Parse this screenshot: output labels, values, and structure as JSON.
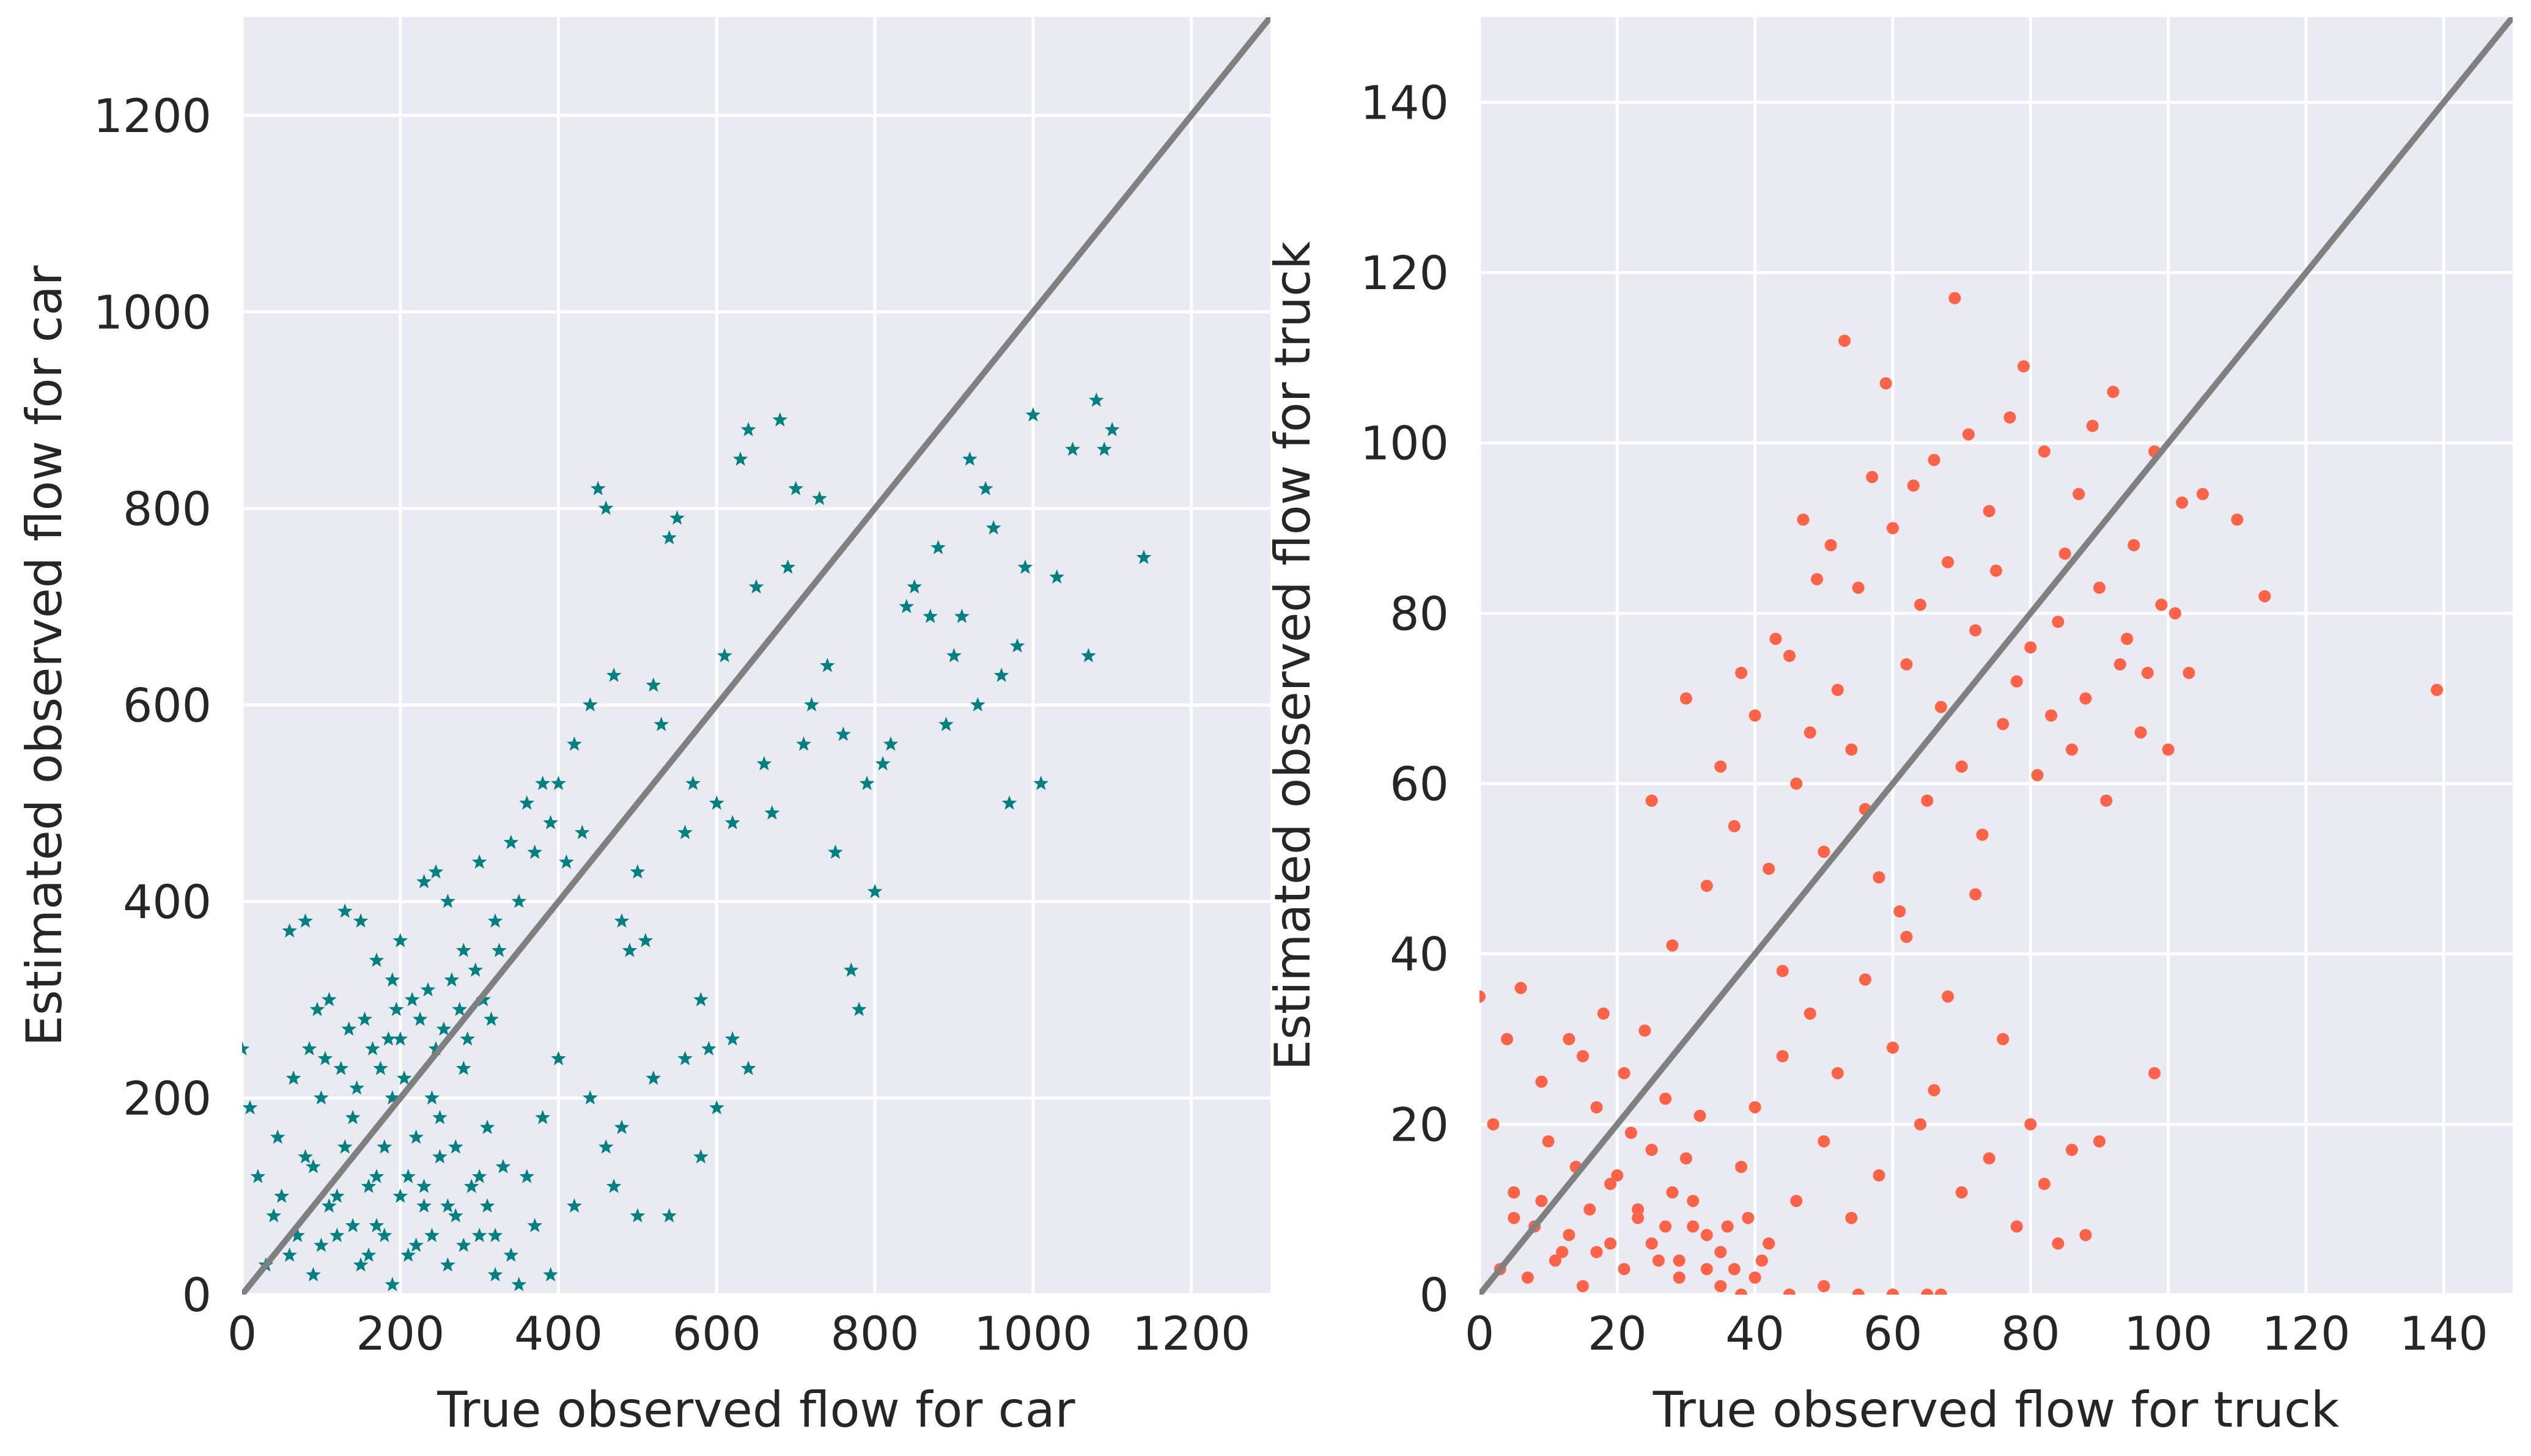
{
  "chart_data": [
    {
      "type": "scatter",
      "marker": "star",
      "color": "#008080",
      "background": "#EAEAF2",
      "grid": true,
      "xlabel": "True observed flow for car",
      "ylabel": "Estimated observed flow for car",
      "xlim": [
        0,
        1300
      ],
      "ylim": [
        0,
        1300
      ],
      "xticks": [
        "0",
        "200",
        "400",
        "600",
        "800",
        "1000",
        "1200"
      ],
      "yticks": [
        "0",
        "200",
        "400",
        "600",
        "800",
        "1000",
        "1200"
      ],
      "reference_line": {
        "from": [
          0,
          0
        ],
        "to": [
          1300,
          1300
        ],
        "color": "#808080"
      },
      "points": [
        [
          0,
          250
        ],
        [
          10,
          190
        ],
        [
          20,
          120
        ],
        [
          40,
          80
        ],
        [
          60,
          40
        ],
        [
          80,
          140
        ],
        [
          90,
          20
        ],
        [
          100,
          200
        ],
        [
          110,
          90
        ],
        [
          120,
          60
        ],
        [
          140,
          180
        ],
        [
          150,
          30
        ],
        [
          160,
          110
        ],
        [
          170,
          70
        ],
        [
          180,
          150
        ],
        [
          190,
          10
        ],
        [
          200,
          260
        ],
        [
          210,
          120
        ],
        [
          220,
          50
        ],
        [
          230,
          90
        ],
        [
          240,
          200
        ],
        [
          250,
          140
        ],
        [
          260,
          30
        ],
        [
          270,
          80
        ],
        [
          280,
          230
        ],
        [
          290,
          110
        ],
        [
          300,
          60
        ],
        [
          310,
          170
        ],
        [
          320,
          20
        ],
        [
          330,
          130
        ],
        [
          60,
          370
        ],
        [
          80,
          380
        ],
        [
          110,
          300
        ],
        [
          130,
          390
        ],
        [
          150,
          380
        ],
        [
          170,
          340
        ],
        [
          200,
          360
        ],
        [
          230,
          420
        ],
        [
          245,
          430
        ],
        [
          190,
          320
        ],
        [
          260,
          400
        ],
        [
          280,
          350
        ],
        [
          300,
          440
        ],
        [
          320,
          380
        ],
        [
          340,
          460
        ],
        [
          350,
          400
        ],
        [
          360,
          500
        ],
        [
          370,
          450
        ],
        [
          380,
          520
        ],
        [
          390,
          480
        ],
        [
          400,
          520
        ],
        [
          410,
          440
        ],
        [
          420,
          560
        ],
        [
          430,
          470
        ],
        [
          440,
          600
        ],
        [
          450,
          820
        ],
        [
          460,
          800
        ],
        [
          470,
          630
        ],
        [
          480,
          380
        ],
        [
          490,
          350
        ],
        [
          500,
          430
        ],
        [
          510,
          360
        ],
        [
          520,
          620
        ],
        [
          530,
          580
        ],
        [
          540,
          770
        ],
        [
          550,
          790
        ],
        [
          560,
          470
        ],
        [
          570,
          520
        ],
        [
          580,
          300
        ],
        [
          590,
          250
        ],
        [
          600,
          500
        ],
        [
          610,
          650
        ],
        [
          620,
          480
        ],
        [
          630,
          850
        ],
        [
          640,
          880
        ],
        [
          650,
          720
        ],
        [
          660,
          540
        ],
        [
          670,
          490
        ],
        [
          680,
          890
        ],
        [
          690,
          740
        ],
        [
          700,
          820
        ],
        [
          710,
          560
        ],
        [
          720,
          600
        ],
        [
          730,
          810
        ],
        [
          740,
          640
        ],
        [
          750,
          450
        ],
        [
          760,
          570
        ],
        [
          770,
          330
        ],
        [
          780,
          290
        ],
        [
          790,
          520
        ],
        [
          800,
          410
        ],
        [
          810,
          540
        ],
        [
          820,
          560
        ],
        [
          840,
          700
        ],
        [
          850,
          720
        ],
        [
          870,
          690
        ],
        [
          880,
          760
        ],
        [
          890,
          580
        ],
        [
          900,
          650
        ],
        [
          910,
          690
        ],
        [
          920,
          850
        ],
        [
          930,
          600
        ],
        [
          940,
          820
        ],
        [
          950,
          780
        ],
        [
          960,
          630
        ],
        [
          970,
          500
        ],
        [
          980,
          660
        ],
        [
          990,
          740
        ],
        [
          1000,
          895
        ],
        [
          1010,
          520
        ],
        [
          1030,
          730
        ],
        [
          1050,
          860
        ],
        [
          1080,
          910
        ],
        [
          1090,
          860
        ],
        [
          1100,
          880
        ],
        [
          1070,
          650
        ],
        [
          1140,
          750
        ],
        [
          100,
          50
        ],
        [
          120,
          100
        ],
        [
          130,
          150
        ],
        [
          140,
          70
        ],
        [
          160,
          40
        ],
        [
          170,
          120
        ],
        [
          180,
          60
        ],
        [
          190,
          200
        ],
        [
          200,
          100
        ],
        [
          210,
          40
        ],
        [
          220,
          160
        ],
        [
          230,
          110
        ],
        [
          240,
          60
        ],
        [
          250,
          180
        ],
        [
          260,
          90
        ],
        [
          270,
          150
        ],
        [
          280,
          50
        ],
        [
          300,
          120
        ],
        [
          310,
          90
        ],
        [
          320,
          60
        ],
        [
          340,
          40
        ],
        [
          350,
          10
        ],
        [
          360,
          120
        ],
        [
          370,
          70
        ],
        [
          380,
          180
        ],
        [
          390,
          20
        ],
        [
          400,
          240
        ],
        [
          420,
          90
        ],
        [
          440,
          200
        ],
        [
          460,
          150
        ],
        [
          470,
          110
        ],
        [
          480,
          170
        ],
        [
          500,
          80
        ],
        [
          520,
          220
        ],
        [
          540,
          80
        ],
        [
          560,
          240
        ],
        [
          580,
          140
        ],
        [
          600,
          190
        ],
        [
          620,
          260
        ],
        [
          640,
          230
        ],
        [
          50,
          100
        ],
        [
          70,
          60
        ],
        [
          90,
          130
        ],
        [
          30,
          30
        ],
        [
          45,
          160
        ],
        [
          65,
          220
        ],
        [
          85,
          250
        ],
        [
          95,
          290
        ],
        [
          105,
          240
        ],
        [
          125,
          230
        ],
        [
          135,
          270
        ],
        [
          145,
          210
        ],
        [
          155,
          280
        ],
        [
          165,
          250
        ],
        [
          175,
          230
        ],
        [
          185,
          260
        ],
        [
          195,
          290
        ],
        [
          205,
          220
        ],
        [
          215,
          300
        ],
        [
          225,
          280
        ],
        [
          235,
          310
        ],
        [
          245,
          250
        ],
        [
          255,
          270
        ],
        [
          265,
          320
        ],
        [
          275,
          290
        ],
        [
          285,
          260
        ],
        [
          295,
          330
        ],
        [
          305,
          300
        ],
        [
          315,
          280
        ],
        [
          325,
          350
        ]
      ]
    },
    {
      "type": "scatter",
      "marker": "circle",
      "color": "#FF6347",
      "background": "#EAEAF2",
      "grid": true,
      "xlabel": "True observed flow for truck",
      "ylabel": "Estimated observed flow for truck",
      "xlim": [
        0,
        150
      ],
      "ylim": [
        0,
        150
      ],
      "xticks": [
        "0",
        "20",
        "40",
        "60",
        "80",
        "100",
        "120",
        "140"
      ],
      "yticks": [
        "0",
        "20",
        "40",
        "60",
        "80",
        "100",
        "120",
        "140"
      ],
      "reference_line": {
        "from": [
          0,
          0
        ],
        "to": [
          150,
          150
        ],
        "color": "#808080"
      },
      "points": [
        [
          0,
          35
        ],
        [
          2,
          20
        ],
        [
          4,
          30
        ],
        [
          5,
          12
        ],
        [
          6,
          36
        ],
        [
          8,
          8
        ],
        [
          9,
          25
        ],
        [
          10,
          18
        ],
        [
          12,
          5
        ],
        [
          13,
          30
        ],
        [
          14,
          15
        ],
        [
          15,
          28
        ],
        [
          16,
          10
        ],
        [
          17,
          22
        ],
        [
          18,
          33
        ],
        [
          19,
          6
        ],
        [
          20,
          14
        ],
        [
          21,
          26
        ],
        [
          22,
          19
        ],
        [
          23,
          9
        ],
        [
          24,
          31
        ],
        [
          25,
          17
        ],
        [
          26,
          4
        ],
        [
          27,
          23
        ],
        [
          28,
          12
        ],
        [
          29,
          2
        ],
        [
          30,
          16
        ],
        [
          31,
          8
        ],
        [
          32,
          21
        ],
        [
          33,
          3
        ],
        [
          35,
          1
        ],
        [
          38,
          0
        ],
        [
          40,
          2
        ],
        [
          45,
          0
        ],
        [
          50,
          1
        ],
        [
          55,
          0
        ],
        [
          60,
          0
        ],
        [
          65,
          0
        ],
        [
          67,
          0
        ],
        [
          25,
          58
        ],
        [
          28,
          41
        ],
        [
          30,
          70
        ],
        [
          33,
          48
        ],
        [
          35,
          62
        ],
        [
          37,
          55
        ],
        [
          38,
          73
        ],
        [
          40,
          68
        ],
        [
          42,
          50
        ],
        [
          43,
          77
        ],
        [
          44,
          38
        ],
        [
          45,
          75
        ],
        [
          46,
          60
        ],
        [
          47,
          91
        ],
        [
          48,
          66
        ],
        [
          49,
          84
        ],
        [
          50,
          52
        ],
        [
          51,
          88
        ],
        [
          52,
          71
        ],
        [
          53,
          112
        ],
        [
          54,
          64
        ],
        [
          55,
          83
        ],
        [
          56,
          57
        ],
        [
          57,
          96
        ],
        [
          58,
          49
        ],
        [
          59,
          107
        ],
        [
          60,
          90
        ],
        [
          61,
          45
        ],
        [
          62,
          74
        ],
        [
          63,
          95
        ],
        [
          64,
          81
        ],
        [
          65,
          58
        ],
        [
          66,
          98
        ],
        [
          67,
          69
        ],
        [
          68,
          86
        ],
        [
          69,
          117
        ],
        [
          70,
          62
        ],
        [
          71,
          101
        ],
        [
          72,
          78
        ],
        [
          73,
          54
        ],
        [
          74,
          92
        ],
        [
          75,
          85
        ],
        [
          76,
          67
        ],
        [
          77,
          103
        ],
        [
          78,
          72
        ],
        [
          79,
          109
        ],
        [
          80,
          76
        ],
        [
          81,
          61
        ],
        [
          82,
          99
        ],
        [
          83,
          68
        ],
        [
          84,
          79
        ],
        [
          85,
          87
        ],
        [
          86,
          64
        ],
        [
          87,
          94
        ],
        [
          88,
          70
        ],
        [
          89,
          102
        ],
        [
          90,
          83
        ],
        [
          91,
          58
        ],
        [
          92,
          106
        ],
        [
          93,
          74
        ],
        [
          94,
          77
        ],
        [
          95,
          88
        ],
        [
          96,
          66
        ],
        [
          97,
          73
        ],
        [
          98,
          99
        ],
        [
          99,
          81
        ],
        [
          100,
          64
        ],
        [
          101,
          80
        ],
        [
          102,
          93
        ],
        [
          103,
          73
        ],
        [
          105,
          94
        ],
        [
          110,
          91
        ],
        [
          114,
          82
        ],
        [
          139,
          71
        ],
        [
          36,
          8
        ],
        [
          38,
          15
        ],
        [
          40,
          22
        ],
        [
          42,
          6
        ],
        [
          44,
          28
        ],
        [
          46,
          11
        ],
        [
          48,
          33
        ],
        [
          50,
          18
        ],
        [
          52,
          26
        ],
        [
          54,
          9
        ],
        [
          56,
          37
        ],
        [
          58,
          14
        ],
        [
          60,
          29
        ],
        [
          62,
          42
        ],
        [
          64,
          20
        ],
        [
          66,
          24
        ],
        [
          68,
          35
        ],
        [
          70,
          12
        ],
        [
          72,
          47
        ],
        [
          74,
          16
        ],
        [
          76,
          30
        ],
        [
          78,
          8
        ],
        [
          80,
          20
        ],
        [
          82,
          13
        ],
        [
          84,
          6
        ],
        [
          86,
          17
        ],
        [
          88,
          7
        ],
        [
          90,
          18
        ],
        [
          98,
          26
        ],
        [
          3,
          3
        ],
        [
          5,
          9
        ],
        [
          7,
          2
        ],
        [
          9,
          11
        ],
        [
          11,
          4
        ],
        [
          13,
          7
        ],
        [
          15,
          1
        ],
        [
          17,
          5
        ],
        [
          19,
          13
        ],
        [
          21,
          3
        ],
        [
          23,
          10
        ],
        [
          25,
          6
        ],
        [
          27,
          8
        ],
        [
          29,
          4
        ],
        [
          31,
          11
        ],
        [
          33,
          7
        ],
        [
          35,
          5
        ],
        [
          37,
          3
        ],
        [
          39,
          9
        ],
        [
          41,
          4
        ]
      ]
    }
  ]
}
